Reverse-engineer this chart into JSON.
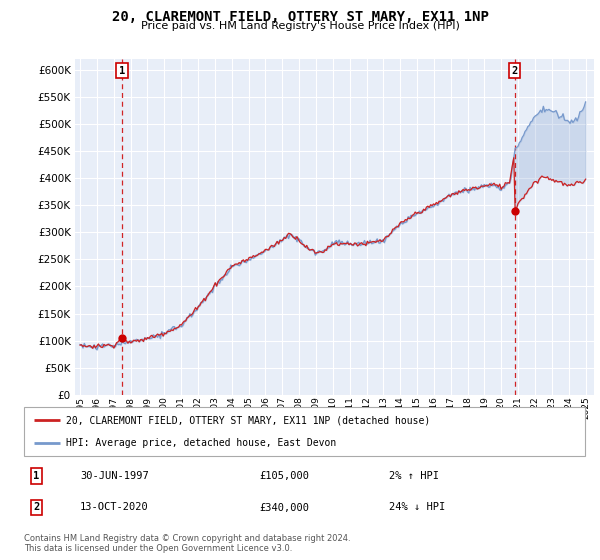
{
  "title": "20, CLAREMONT FIELD, OTTERY ST MARY, EX11 1NP",
  "subtitle": "Price paid vs. HM Land Registry's House Price Index (HPI)",
  "legend_line1": "20, CLAREMONT FIELD, OTTERY ST MARY, EX11 1NP (detached house)",
  "legend_line2": "HPI: Average price, detached house, East Devon",
  "annotation1_label": "1",
  "annotation1_date": "30-JUN-1997",
  "annotation1_price": "£105,000",
  "annotation1_hpi": "2% ↑ HPI",
  "annotation2_label": "2",
  "annotation2_date": "13-OCT-2020",
  "annotation2_price": "£340,000",
  "annotation2_hpi": "24% ↓ HPI",
  "footnote": "Contains HM Land Registry data © Crown copyright and database right 2024.\nThis data is licensed under the Open Government Licence v3.0.",
  "hpi_color": "#7799cc",
  "price_color": "#cc2222",
  "dot_color": "#cc0000",
  "bg_color": "#e8eef8",
  "grid_color": "#ffffff",
  "ylim": [
    0,
    620000
  ],
  "yticks": [
    0,
    50000,
    100000,
    150000,
    200000,
    250000,
    300000,
    350000,
    400000,
    450000,
    500000,
    550000,
    600000
  ],
  "x_start_year": 1995,
  "x_end_year": 2025,
  "sale1_year": 1997.5,
  "sale1_value": 105000,
  "sale2_year": 2020.79,
  "sale2_value": 340000
}
